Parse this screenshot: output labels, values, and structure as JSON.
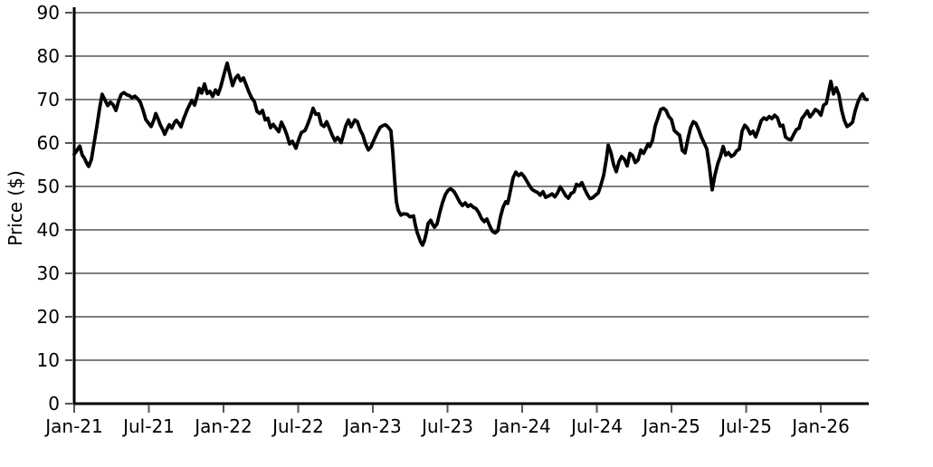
{
  "chart_data": {
    "type": "line",
    "title": "",
    "xlabel": "",
    "ylabel": "Price ($)",
    "ylim": [
      0,
      90
    ],
    "yticks": [
      0,
      10,
      20,
      30,
      40,
      50,
      60,
      70,
      80,
      90
    ],
    "xlim_months": [
      0,
      63.85
    ],
    "xticks": [
      {
        "m": 0,
        "label": "Jan-21"
      },
      {
        "m": 6,
        "label": "Jul-21"
      },
      {
        "m": 12,
        "label": "Jan-22"
      },
      {
        "m": 18,
        "label": "Jul-22"
      },
      {
        "m": 24,
        "label": "Jan-23"
      },
      {
        "m": 30,
        "label": "Jul-23"
      },
      {
        "m": 36,
        "label": "Jan-24"
      },
      {
        "m": 42,
        "label": "Jul-24"
      },
      {
        "m": 48,
        "label": "Jan-25"
      },
      {
        "m": 54,
        "label": "Jul-25"
      },
      {
        "m": 60,
        "label": "Jan-26"
      }
    ],
    "legend": null,
    "grid": "horizontal",
    "colors": {
      "line": "#000000",
      "grid": "#808080",
      "axis": "#000000",
      "tick": "#555555"
    },
    "series_name": "Price",
    "points": [
      [
        0.0,
        57.4
      ],
      [
        0.22,
        58.3
      ],
      [
        0.44,
        59.3
      ],
      [
        0.65,
        57.2
      ],
      [
        0.8,
        56.6
      ],
      [
        1.02,
        55.3
      ],
      [
        1.16,
        54.6
      ],
      [
        1.38,
        56.2
      ],
      [
        1.6,
        60.0
      ],
      [
        1.82,
        63.8
      ],
      [
        2.04,
        68.0
      ],
      [
        2.25,
        71.2
      ],
      [
        2.47,
        69.9
      ],
      [
        2.69,
        68.6
      ],
      [
        2.91,
        69.4
      ],
      [
        3.13,
        68.8
      ],
      [
        3.35,
        67.5
      ],
      [
        3.56,
        69.6
      ],
      [
        3.78,
        71.2
      ],
      [
        4.0,
        71.6
      ],
      [
        4.22,
        71.1
      ],
      [
        4.44,
        70.9
      ],
      [
        4.65,
        70.4
      ],
      [
        4.87,
        70.8
      ],
      [
        5.09,
        70.2
      ],
      [
        5.31,
        69.4
      ],
      [
        5.53,
        67.6
      ],
      [
        5.75,
        65.4
      ],
      [
        5.96,
        64.6
      ],
      [
        6.18,
        63.8
      ],
      [
        6.4,
        65.3
      ],
      [
        6.55,
        66.8
      ],
      [
        6.76,
        65.4
      ],
      [
        6.91,
        64.2
      ],
      [
        7.13,
        63.0
      ],
      [
        7.27,
        62.0
      ],
      [
        7.49,
        63.4
      ],
      [
        7.64,
        64.2
      ],
      [
        7.85,
        63.4
      ],
      [
        8.07,
        64.8
      ],
      [
        8.22,
        65.2
      ],
      [
        8.44,
        64.4
      ],
      [
        8.58,
        63.7
      ],
      [
        8.8,
        65.6
      ],
      [
        9.09,
        67.7
      ],
      [
        9.31,
        69.0
      ],
      [
        9.45,
        69.8
      ],
      [
        9.67,
        68.7
      ],
      [
        9.89,
        70.9
      ],
      [
        10.04,
        72.6
      ],
      [
        10.25,
        71.5
      ],
      [
        10.47,
        73.6
      ],
      [
        10.69,
        71.4
      ],
      [
        10.91,
        71.9
      ],
      [
        11.13,
        70.7
      ],
      [
        11.35,
        72.2
      ],
      [
        11.56,
        71.2
      ],
      [
        11.78,
        73.0
      ],
      [
        12.0,
        75.4
      ],
      [
        12.29,
        78.4
      ],
      [
        12.51,
        75.8
      ],
      [
        12.73,
        73.2
      ],
      [
        12.95,
        74.9
      ],
      [
        13.16,
        75.6
      ],
      [
        13.38,
        74.3
      ],
      [
        13.6,
        75.0
      ],
      [
        13.82,
        73.4
      ],
      [
        14.04,
        71.7
      ],
      [
        14.25,
        70.4
      ],
      [
        14.47,
        69.6
      ],
      [
        14.69,
        67.3
      ],
      [
        14.91,
        66.8
      ],
      [
        15.13,
        67.5
      ],
      [
        15.35,
        65.3
      ],
      [
        15.56,
        65.7
      ],
      [
        15.78,
        63.5
      ],
      [
        16.0,
        64.3
      ],
      [
        16.22,
        63.4
      ],
      [
        16.44,
        62.6
      ],
      [
        16.65,
        64.8
      ],
      [
        16.87,
        63.5
      ],
      [
        17.09,
        61.9
      ],
      [
        17.31,
        59.8
      ],
      [
        17.53,
        60.4
      ],
      [
        17.82,
        58.8
      ],
      [
        18.04,
        60.8
      ],
      [
        18.25,
        62.4
      ],
      [
        18.55,
        62.9
      ],
      [
        18.76,
        64.3
      ],
      [
        18.98,
        66.0
      ],
      [
        19.2,
        68.0
      ],
      [
        19.42,
        66.6
      ],
      [
        19.64,
        66.7
      ],
      [
        19.85,
        64.3
      ],
      [
        20.07,
        63.8
      ],
      [
        20.29,
        64.9
      ],
      [
        20.51,
        63.4
      ],
      [
        20.73,
        61.8
      ],
      [
        20.95,
        60.5
      ],
      [
        21.16,
        61.3
      ],
      [
        21.45,
        60.1
      ],
      [
        21.67,
        62.3
      ],
      [
        21.82,
        63.9
      ],
      [
        22.04,
        65.3
      ],
      [
        22.25,
        63.7
      ],
      [
        22.55,
        65.3
      ],
      [
        22.76,
        64.9
      ],
      [
        22.98,
        63.0
      ],
      [
        23.2,
        61.8
      ],
      [
        23.42,
        59.8
      ],
      [
        23.64,
        58.4
      ],
      [
        23.85,
        59.1
      ],
      [
        24.07,
        60.6
      ],
      [
        24.36,
        62.4
      ],
      [
        24.58,
        63.6
      ],
      [
        24.8,
        64.0
      ],
      [
        25.02,
        64.2
      ],
      [
        25.24,
        63.6
      ],
      [
        25.45,
        62.8
      ],
      [
        25.6,
        58.0
      ],
      [
        25.75,
        51.5
      ],
      [
        25.89,
        46.5
      ],
      [
        26.04,
        44.5
      ],
      [
        26.25,
        43.4
      ],
      [
        26.47,
        43.7
      ],
      [
        26.76,
        43.6
      ],
      [
        26.98,
        43.0
      ],
      [
        27.27,
        43.2
      ],
      [
        27.42,
        41.0
      ],
      [
        27.56,
        39.4
      ],
      [
        27.71,
        38.3
      ],
      [
        27.85,
        37.1
      ],
      [
        28.0,
        36.5
      ],
      [
        28.15,
        37.6
      ],
      [
        28.29,
        39.2
      ],
      [
        28.44,
        41.5
      ],
      [
        28.65,
        42.2
      ],
      [
        28.8,
        41.3
      ],
      [
        28.95,
        40.6
      ],
      [
        29.16,
        41.4
      ],
      [
        29.38,
        44.0
      ],
      [
        29.6,
        46.3
      ],
      [
        29.82,
        48.1
      ],
      [
        30.04,
        49.1
      ],
      [
        30.25,
        49.5
      ],
      [
        30.55,
        48.7
      ],
      [
        30.76,
        47.6
      ],
      [
        30.98,
        46.4
      ],
      [
        31.2,
        45.6
      ],
      [
        31.42,
        46.2
      ],
      [
        31.64,
        45.4
      ],
      [
        31.85,
        45.8
      ],
      [
        32.07,
        45.2
      ],
      [
        32.29,
        44.9
      ],
      [
        32.51,
        44.0
      ],
      [
        32.73,
        42.6
      ],
      [
        32.95,
        41.9
      ],
      [
        33.16,
        42.5
      ],
      [
        33.38,
        41.0
      ],
      [
        33.6,
        39.7
      ],
      [
        33.82,
        39.3
      ],
      [
        34.04,
        39.8
      ],
      [
        34.25,
        43.0
      ],
      [
        34.47,
        45.3
      ],
      [
        34.69,
        46.5
      ],
      [
        34.84,
        46.1
      ],
      [
        35.05,
        49.0
      ],
      [
        35.27,
        52.0
      ],
      [
        35.49,
        53.3
      ],
      [
        35.71,
        52.5
      ],
      [
        35.93,
        53.0
      ],
      [
        36.15,
        52.3
      ],
      [
        36.36,
        51.3
      ],
      [
        36.58,
        50.2
      ],
      [
        36.8,
        49.3
      ],
      [
        37.02,
        48.9
      ],
      [
        37.24,
        48.6
      ],
      [
        37.45,
        48.0
      ],
      [
        37.67,
        48.8
      ],
      [
        37.89,
        47.5
      ],
      [
        38.18,
        47.9
      ],
      [
        38.4,
        48.3
      ],
      [
        38.62,
        47.6
      ],
      [
        38.84,
        48.5
      ],
      [
        39.05,
        49.9
      ],
      [
        39.27,
        49.0
      ],
      [
        39.49,
        47.9
      ],
      [
        39.71,
        47.3
      ],
      [
        39.93,
        48.4
      ],
      [
        40.15,
        48.7
      ],
      [
        40.36,
        50.5
      ],
      [
        40.58,
        50.1
      ],
      [
        40.8,
        50.9
      ],
      [
        41.02,
        49.4
      ],
      [
        41.24,
        48.1
      ],
      [
        41.45,
        47.2
      ],
      [
        41.67,
        47.4
      ],
      [
        41.89,
        48.0
      ],
      [
        42.11,
        48.5
      ],
      [
        42.33,
        50.4
      ],
      [
        42.55,
        52.6
      ],
      [
        42.76,
        56.2
      ],
      [
        42.91,
        59.5
      ],
      [
        43.13,
        57.8
      ],
      [
        43.35,
        55.0
      ],
      [
        43.56,
        53.4
      ],
      [
        43.78,
        55.7
      ],
      [
        44.0,
        56.9
      ],
      [
        44.22,
        56.2
      ],
      [
        44.44,
        54.7
      ],
      [
        44.65,
        57.6
      ],
      [
        44.87,
        57.1
      ],
      [
        45.09,
        55.5
      ],
      [
        45.31,
        56.1
      ],
      [
        45.53,
        58.4
      ],
      [
        45.75,
        57.6
      ],
      [
        45.96,
        58.8
      ],
      [
        46.11,
        59.8
      ],
      [
        46.25,
        59.2
      ],
      [
        46.47,
        60.6
      ],
      [
        46.69,
        63.9
      ],
      [
        46.91,
        65.8
      ],
      [
        47.13,
        67.7
      ],
      [
        47.35,
        68.0
      ],
      [
        47.56,
        67.5
      ],
      [
        47.78,
        66.1
      ],
      [
        48.0,
        65.4
      ],
      [
        48.22,
        62.9
      ],
      [
        48.44,
        62.3
      ],
      [
        48.65,
        61.8
      ],
      [
        48.87,
        58.3
      ],
      [
        49.09,
        57.7
      ],
      [
        49.31,
        60.9
      ],
      [
        49.53,
        63.5
      ],
      [
        49.75,
        64.9
      ],
      [
        49.96,
        64.5
      ],
      [
        50.18,
        63.1
      ],
      [
        50.4,
        61.4
      ],
      [
        50.62,
        60.0
      ],
      [
        50.84,
        58.6
      ],
      [
        51.05,
        54.5
      ],
      [
        51.27,
        49.2
      ],
      [
        51.49,
        52.6
      ],
      [
        51.71,
        55.2
      ],
      [
        51.93,
        56.9
      ],
      [
        52.15,
        59.2
      ],
      [
        52.36,
        57.2
      ],
      [
        52.58,
        57.8
      ],
      [
        52.8,
        56.9
      ],
      [
        53.02,
        57.3
      ],
      [
        53.24,
        58.2
      ],
      [
        53.45,
        58.6
      ],
      [
        53.67,
        62.7
      ],
      [
        53.89,
        64.1
      ],
      [
        54.11,
        63.4
      ],
      [
        54.33,
        62.1
      ],
      [
        54.55,
        62.7
      ],
      [
        54.76,
        61.4
      ],
      [
        54.98,
        63.1
      ],
      [
        55.2,
        65.1
      ],
      [
        55.42,
        65.8
      ],
      [
        55.64,
        65.4
      ],
      [
        55.85,
        66.1
      ],
      [
        56.07,
        65.6
      ],
      [
        56.29,
        66.4
      ],
      [
        56.51,
        65.8
      ],
      [
        56.73,
        63.9
      ],
      [
        56.95,
        64.1
      ],
      [
        57.16,
        61.4
      ],
      [
        57.38,
        60.9
      ],
      [
        57.6,
        60.7
      ],
      [
        57.82,
        62.0
      ],
      [
        58.04,
        63.1
      ],
      [
        58.25,
        63.4
      ],
      [
        58.47,
        65.6
      ],
      [
        58.69,
        66.4
      ],
      [
        58.91,
        67.4
      ],
      [
        59.13,
        66.0
      ],
      [
        59.35,
        66.8
      ],
      [
        59.56,
        67.7
      ],
      [
        59.78,
        67.3
      ],
      [
        60.0,
        66.4
      ],
      [
        60.22,
        68.7
      ],
      [
        60.44,
        69.1
      ],
      [
        60.65,
        72.1
      ],
      [
        60.8,
        74.2
      ],
      [
        61.02,
        71.3
      ],
      [
        61.24,
        72.7
      ],
      [
        61.45,
        71.1
      ],
      [
        61.67,
        67.6
      ],
      [
        61.89,
        65.2
      ],
      [
        62.11,
        63.8
      ],
      [
        62.33,
        64.2
      ],
      [
        62.55,
        64.8
      ],
      [
        62.76,
        67.4
      ],
      [
        62.98,
        69.4
      ],
      [
        63.2,
        70.8
      ],
      [
        63.35,
        71.3
      ],
      [
        63.56,
        70.1
      ],
      [
        63.71,
        70.0
      ]
    ]
  }
}
